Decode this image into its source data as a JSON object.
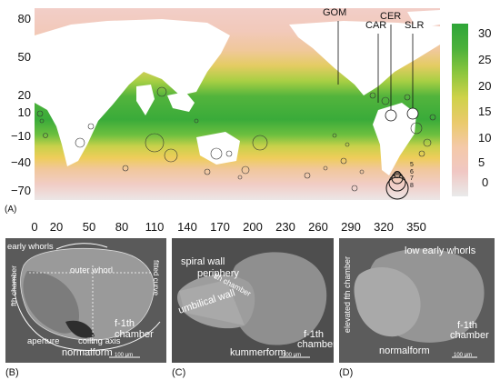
{
  "map": {
    "y_ticks": [
      "80",
      "50",
      "20",
      "10",
      "−10",
      "−40",
      "−70"
    ],
    "x_ticks": [
      "0",
      "20",
      "50",
      "80",
      "110",
      "140",
      "170",
      "200",
      "230",
      "260",
      "290",
      "320",
      "350"
    ],
    "panel_label": "(A)",
    "regions": [
      "GOM",
      "CAR",
      "CER",
      "SLR"
    ],
    "colorbar_ticks": [
      "30",
      "25",
      "20",
      "15",
      "10",
      "5",
      "0"
    ],
    "colorbar_range": [
      -2,
      32
    ],
    "colorbar_colors": [
      "#e9eaea",
      "#f0c7c3",
      "#f4c9a8",
      "#eaca6b",
      "#cfd24a",
      "#8cc63e",
      "#4bb13a",
      "#2ea538"
    ],
    "size_legend": [
      "5",
      "6",
      "7",
      "8"
    ]
  },
  "panels": [
    {
      "label": "(B)",
      "annotations": [
        "early whorls",
        "outer whorl",
        "fitted curve",
        "fth chamber",
        "aperture",
        "coiling axis",
        "f-1th",
        "chamber",
        "normalform"
      ],
      "scale": "100 μm"
    },
    {
      "label": "(C)",
      "annotations": [
        "spiral wall",
        "periphery",
        "fth chamber",
        "umbilical wall",
        "f-1th",
        "chamber",
        "kummerform"
      ],
      "scale": "100 μm"
    },
    {
      "label": "(D)",
      "annotations": [
        "low early whorls",
        "elevated fth chamber",
        "f-1th",
        "chamber",
        "normalform"
      ],
      "scale": "100 μm"
    }
  ]
}
